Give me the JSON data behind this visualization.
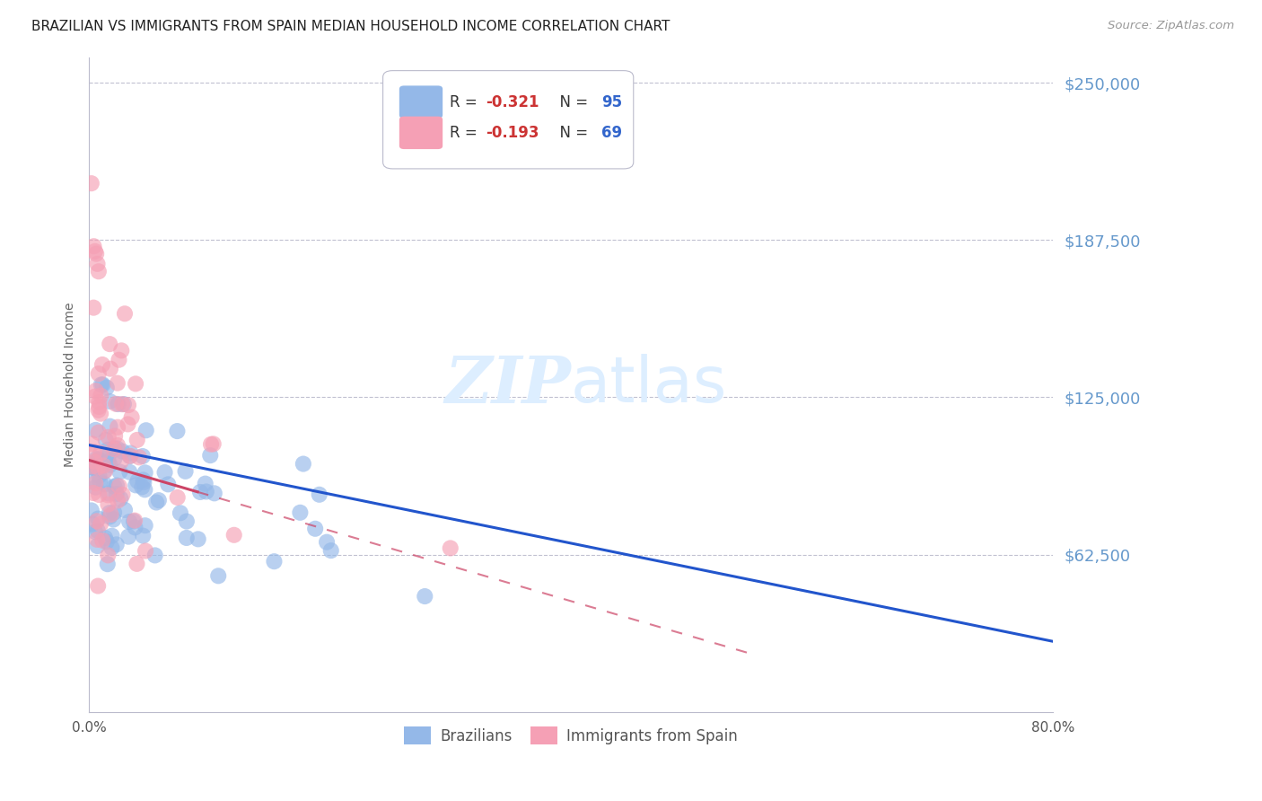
{
  "title": "BRAZILIAN VS IMMIGRANTS FROM SPAIN MEDIAN HOUSEHOLD INCOME CORRELATION CHART",
  "source": "Source: ZipAtlas.com",
  "ylabel": "Median Household Income",
  "xlim": [
    0.0,
    0.8
  ],
  "ylim": [
    0,
    260000
  ],
  "yticks": [
    62500,
    125000,
    187500,
    250000
  ],
  "ytick_labels": [
    "$62,500",
    "$125,000",
    "$187,500",
    "$250,000"
  ],
  "xticks": [
    0.0,
    0.1,
    0.2,
    0.3,
    0.4,
    0.5,
    0.6,
    0.7,
    0.8
  ],
  "xtick_labels": [
    "0.0%",
    "",
    "",
    "",
    "",
    "",
    "",
    "",
    "80.0%"
  ],
  "brazil_R": -0.321,
  "brazil_N": 95,
  "spain_R": -0.193,
  "spain_N": 69,
  "brazil_color": "#94b8e8",
  "spain_color": "#f5a0b5",
  "brazil_line_color": "#2255cc",
  "spain_line_color": "#cc4466",
  "background_color": "#ffffff",
  "watermark_zip": "ZIP",
  "watermark_atlas": "atlas",
  "watermark_color": "#ddeeff",
  "title_fontsize": 11,
  "tick_label_color_y": "#6699cc",
  "tick_label_color_x": "#555555",
  "legend_R_color": "#cc3333",
  "legend_N_color": "#3366cc"
}
